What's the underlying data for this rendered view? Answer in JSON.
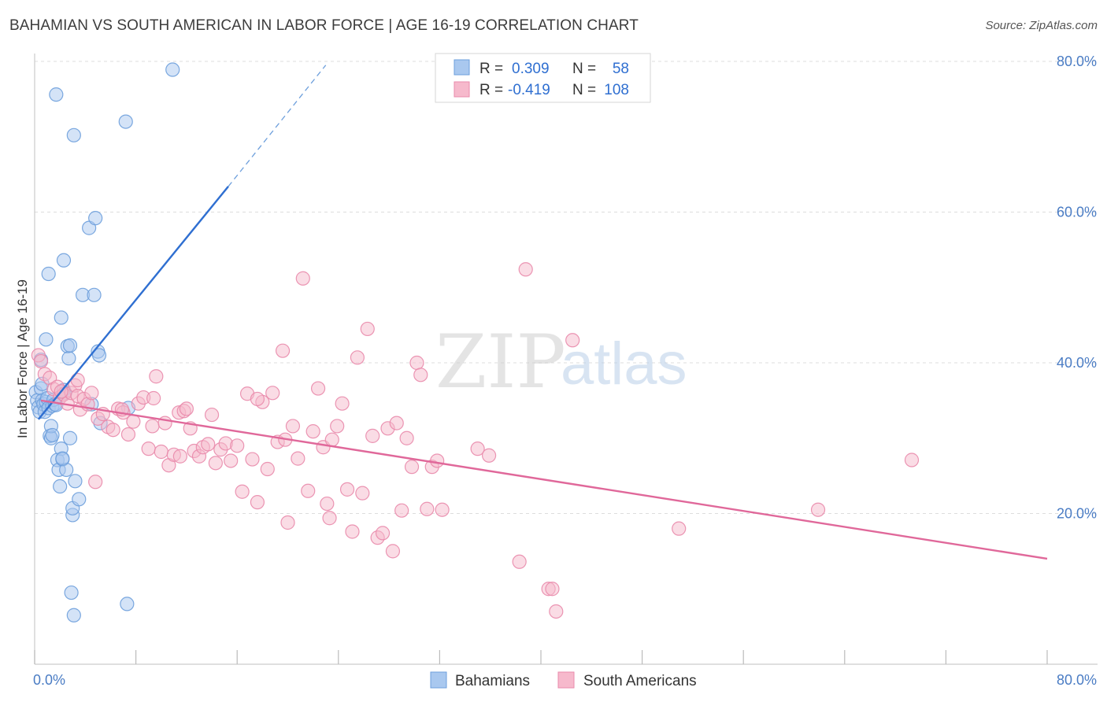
{
  "title": "BAHAMIAN VS SOUTH AMERICAN IN LABOR FORCE | AGE 16-19 CORRELATION CHART",
  "source": "Source: ZipAtlas.com",
  "watermark": {
    "zip": "ZIP",
    "atlas": "atlas"
  },
  "colors": {
    "blue_fill": "#a9c8ef",
    "blue_stroke": "#6d9fdc",
    "blue_line": "#2f6fd1",
    "pink_fill": "#f6b9cc",
    "pink_stroke": "#e98aab",
    "pink_line": "#e0689a",
    "tick_text": "#4a7cc4",
    "grid": "#dddddd"
  },
  "stats": {
    "r_label": "R =",
    "n_label": "N =",
    "series1": {
      "r": "0.309",
      "n": "58"
    },
    "series2": {
      "r": "-0.419",
      "n": "108"
    }
  },
  "chart_data": {
    "type": "scatter",
    "title": "BAHAMIAN VS SOUTH AMERICAN IN LABOR FORCE | AGE 16-19 CORRELATION CHART",
    "xlabel": "",
    "ylabel": "In Labor Force | Age 16-19",
    "xlim": [
      0,
      80
    ],
    "ylim": [
      0,
      80
    ],
    "x_tick_labels": [
      "0.0%",
      "80.0%"
    ],
    "y_ticks": [
      {
        "value": 20,
        "label": "20.0%"
      },
      {
        "value": 40,
        "label": "40.0%"
      },
      {
        "value": 60,
        "label": "60.0%"
      },
      {
        "value": 80,
        "label": "80.0%"
      }
    ],
    "grid": true,
    "legend": "bottom-center",
    "series": [
      {
        "name": "Bahamians",
        "color": "#6d9fdc",
        "regression": {
          "x1": 0.3,
          "y1": 32.5,
          "x2": 15.3,
          "y2": 63.4,
          "dashed_to_x": 23,
          "dashed_to_y": 79.5
        },
        "points": [
          [
            0.1,
            36.1
          ],
          [
            0.2,
            35.0
          ],
          [
            0.3,
            34.1
          ],
          [
            0.4,
            33.5
          ],
          [
            0.5,
            36.6
          ],
          [
            0.6,
            37.2
          ],
          [
            0.6,
            35.0
          ],
          [
            0.7,
            34.5
          ],
          [
            0.8,
            33.5
          ],
          [
            0.9,
            34.8
          ],
          [
            1.0,
            35.3
          ],
          [
            1.1,
            34.0
          ],
          [
            1.2,
            30.3
          ],
          [
            1.3,
            30.0
          ],
          [
            1.3,
            31.6
          ],
          [
            1.4,
            34.3
          ],
          [
            1.5,
            35.1
          ],
          [
            1.6,
            34.5
          ],
          [
            1.7,
            34.4
          ],
          [
            1.8,
            27.1
          ],
          [
            1.9,
            25.8
          ],
          [
            2.0,
            23.6
          ],
          [
            2.1,
            28.6
          ],
          [
            2.2,
            27.2
          ],
          [
            2.3,
            36.4
          ],
          [
            2.4,
            36.0
          ],
          [
            2.5,
            25.8
          ],
          [
            2.6,
            42.2
          ],
          [
            2.7,
            40.6
          ],
          [
            2.8,
            30.0
          ],
          [
            3.0,
            19.8
          ],
          [
            0.5,
            40.4
          ],
          [
            0.9,
            43.1
          ],
          [
            1.1,
            51.8
          ],
          [
            1.7,
            75.6
          ],
          [
            2.1,
            46.0
          ],
          [
            2.3,
            53.6
          ],
          [
            2.8,
            42.3
          ],
          [
            3.0,
            20.7
          ],
          [
            3.2,
            24.3
          ],
          [
            3.5,
            21.9
          ],
          [
            3.8,
            49.0
          ],
          [
            4.3,
            57.9
          ],
          [
            4.5,
            34.5
          ],
          [
            4.7,
            49.0
          ],
          [
            4.8,
            59.2
          ],
          [
            5.0,
            41.5
          ],
          [
            5.1,
            41.0
          ],
          [
            5.2,
            32.0
          ],
          [
            7.4,
            34.0
          ],
          [
            7.2,
            72.0
          ],
          [
            10.9,
            78.9
          ],
          [
            3.1,
            70.2
          ],
          [
            2.9,
            9.5
          ],
          [
            3.1,
            6.5
          ],
          [
            7.3,
            8.0
          ],
          [
            1.4,
            30.4
          ],
          [
            2.2,
            27.3
          ]
        ]
      },
      {
        "name": "South Americans",
        "color": "#e98aab",
        "regression": {
          "x1": 0.5,
          "y1": 35.0,
          "x2": 80,
          "y2": 14.0
        },
        "points": [
          [
            0.3,
            41.0
          ],
          [
            0.5,
            40.2
          ],
          [
            0.8,
            38.5
          ],
          [
            1.2,
            38.0
          ],
          [
            1.5,
            36.5
          ],
          [
            1.8,
            36.8
          ],
          [
            2.0,
            35.4
          ],
          [
            2.3,
            35.8
          ],
          [
            2.6,
            34.6
          ],
          [
            2.9,
            36.0
          ],
          [
            3.2,
            37.0
          ],
          [
            3.4,
            35.6
          ],
          [
            3.6,
            33.8
          ],
          [
            3.9,
            35.2
          ],
          [
            4.2,
            34.5
          ],
          [
            4.5,
            36.0
          ],
          [
            4.8,
            24.2
          ],
          [
            5.0,
            32.6
          ],
          [
            5.4,
            33.2
          ],
          [
            5.8,
            31.5
          ],
          [
            6.2,
            31.1
          ],
          [
            6.6,
            33.9
          ],
          [
            7.0,
            33.4
          ],
          [
            7.4,
            30.5
          ],
          [
            7.8,
            32.2
          ],
          [
            8.2,
            34.6
          ],
          [
            8.6,
            35.4
          ],
          [
            9.0,
            28.6
          ],
          [
            9.3,
            31.6
          ],
          [
            9.6,
            38.2
          ],
          [
            10.0,
            28.2
          ],
          [
            10.3,
            32.0
          ],
          [
            10.6,
            26.4
          ],
          [
            11.0,
            27.8
          ],
          [
            11.4,
            33.4
          ],
          [
            11.8,
            33.6
          ],
          [
            12.0,
            33.9
          ],
          [
            12.3,
            31.3
          ],
          [
            12.6,
            28.3
          ],
          [
            13.0,
            27.6
          ],
          [
            13.3,
            28.8
          ],
          [
            13.7,
            29.2
          ],
          [
            14.0,
            33.1
          ],
          [
            14.3,
            26.7
          ],
          [
            14.7,
            28.5
          ],
          [
            15.1,
            29.3
          ],
          [
            15.5,
            27.0
          ],
          [
            16.0,
            29.0
          ],
          [
            16.4,
            22.9
          ],
          [
            16.8,
            35.9
          ],
          [
            17.2,
            27.2
          ],
          [
            17.6,
            21.5
          ],
          [
            18.0,
            34.8
          ],
          [
            18.4,
            25.9
          ],
          [
            18.8,
            36.0
          ],
          [
            19.2,
            29.5
          ],
          [
            19.6,
            41.6
          ],
          [
            20.0,
            18.8
          ],
          [
            20.4,
            31.6
          ],
          [
            20.8,
            27.3
          ],
          [
            21.2,
            51.2
          ],
          [
            21.6,
            23.0
          ],
          [
            22.0,
            30.9
          ],
          [
            22.4,
            36.6
          ],
          [
            22.8,
            28.8
          ],
          [
            23.1,
            21.3
          ],
          [
            23.5,
            29.8
          ],
          [
            23.9,
            31.6
          ],
          [
            24.3,
            34.6
          ],
          [
            24.7,
            23.2
          ],
          [
            25.1,
            17.6
          ],
          [
            25.5,
            40.7
          ],
          [
            25.9,
            22.7
          ],
          [
            26.3,
            44.5
          ],
          [
            26.7,
            30.3
          ],
          [
            27.1,
            16.8
          ],
          [
            27.5,
            17.4
          ],
          [
            27.9,
            31.3
          ],
          [
            28.3,
            15.0
          ],
          [
            28.6,
            32.0
          ],
          [
            29.0,
            20.4
          ],
          [
            29.4,
            30.0
          ],
          [
            29.8,
            26.2
          ],
          [
            30.2,
            40.0
          ],
          [
            30.5,
            38.4
          ],
          [
            31.0,
            20.6
          ],
          [
            31.4,
            26.2
          ],
          [
            31.8,
            27.0
          ],
          [
            32.2,
            20.5
          ],
          [
            35.0,
            28.6
          ],
          [
            35.9,
            27.7
          ],
          [
            38.8,
            52.4
          ],
          [
            38.3,
            13.6
          ],
          [
            40.6,
            10.0
          ],
          [
            40.9,
            10.0
          ],
          [
            41.2,
            7.0
          ],
          [
            42.5,
            43.0
          ],
          [
            50.9,
            18.0
          ],
          [
            61.9,
            20.5
          ],
          [
            69.3,
            27.1
          ],
          [
            9.4,
            35.3
          ],
          [
            3.4,
            37.7
          ],
          [
            17.6,
            35.2
          ],
          [
            23.3,
            19.4
          ],
          [
            2.1,
            36.2
          ],
          [
            19.8,
            29.8
          ],
          [
            6.9,
            33.8
          ],
          [
            11.5,
            27.6
          ]
        ]
      }
    ]
  }
}
